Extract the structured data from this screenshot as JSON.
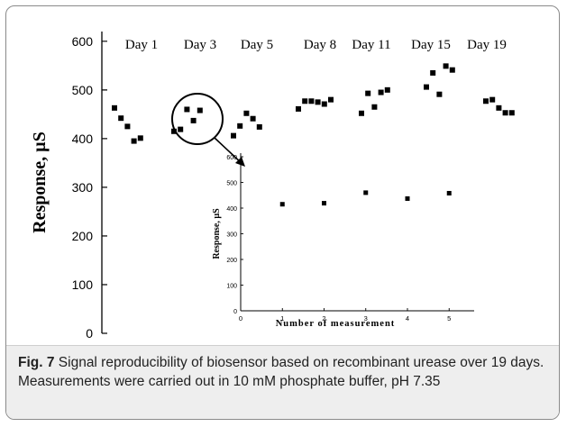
{
  "figure": {
    "caption_label": "Fig. 7",
    "caption_text": " Signal reproducibility of biosensor based on recombinant urease over 19 days. Measurements were carried out in 10 mM phosphate buffer, pH 7.35"
  },
  "chart_data": [
    {
      "type": "scatter",
      "ylabel": "Response, µS",
      "ylim": [
        0,
        620
      ],
      "yticks": [
        0,
        100,
        200,
        300,
        400,
        500,
        600
      ],
      "grid": false,
      "groups": [
        {
          "label": "Day 1",
          "values": [
            463,
            442,
            425,
            395,
            401
          ]
        },
        {
          "label": "Day 3",
          "values": [
            415,
            419,
            460,
            437,
            458
          ]
        },
        {
          "label": "Day 5",
          "values": [
            406,
            426,
            452,
            441,
            424
          ]
        },
        {
          "label": "Day 8",
          "values": [
            461,
            477,
            477,
            475,
            471,
            480
          ]
        },
        {
          "label": "Day 11",
          "values": [
            452,
            493,
            465,
            495,
            500
          ]
        },
        {
          "label": "Day 15",
          "values": [
            506,
            535,
            491,
            549,
            541
          ]
        },
        {
          "label": "Day 19",
          "values": [
            477,
            480,
            463,
            453,
            453
          ]
        }
      ]
    },
    {
      "type": "scatter",
      "xlabel": "Number of measurement",
      "ylabel": "Response, µS",
      "xlim": [
        0,
        5.6
      ],
      "ylim": [
        0,
        600
      ],
      "xticks": [
        0,
        1,
        2,
        3,
        4,
        5
      ],
      "yticks": [
        0,
        100,
        200,
        300,
        400,
        500,
        600
      ],
      "x": [
        1,
        2,
        3,
        4,
        5
      ],
      "y": [
        415,
        419,
        460,
        437,
        458
      ]
    }
  ]
}
